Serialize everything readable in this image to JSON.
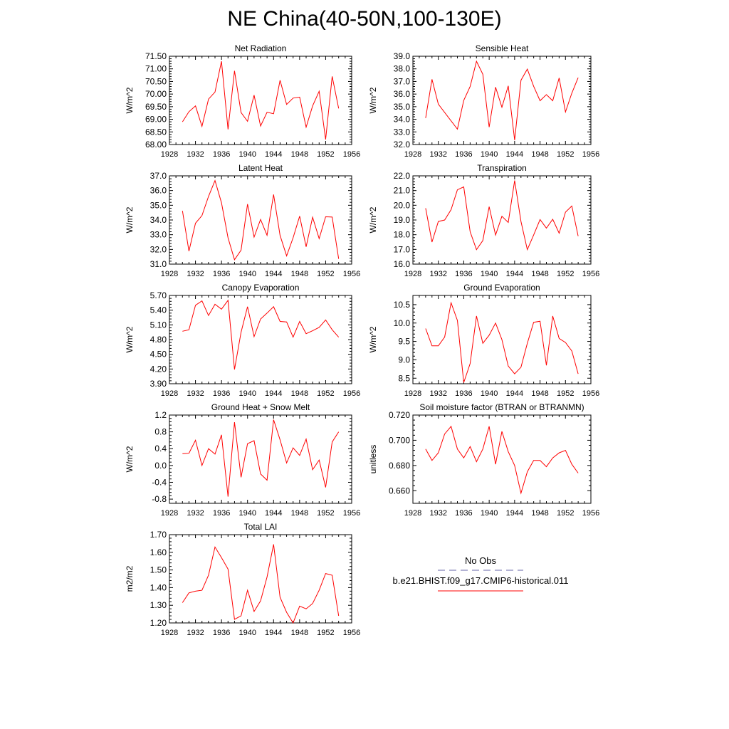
{
  "title": "NE China(40-50N,100-130E)",
  "line_color": "#ff0000",
  "chart_data": [
    {
      "type": "line",
      "title": "Net Radiation",
      "ylabel": "W/m^2",
      "x": [
        1930,
        1931,
        1932,
        1933,
        1934,
        1935,
        1936,
        1937,
        1938,
        1939,
        1940,
        1941,
        1942,
        1943,
        1944,
        1945,
        1946,
        1947,
        1948,
        1949,
        1950,
        1951,
        1952,
        1953,
        1954
      ],
      "values": [
        68.9,
        69.3,
        69.53,
        68.72,
        69.8,
        70.08,
        71.3,
        68.6,
        70.92,
        69.27,
        68.92,
        69.96,
        68.73,
        69.28,
        69.22,
        70.55,
        69.59,
        69.84,
        69.88,
        68.69,
        69.53,
        70.11,
        68.2,
        70.7,
        69.43
      ],
      "ylim": [
        68.0,
        71.5
      ],
      "yticks": [
        "68.00",
        "68.50",
        "69.00",
        "69.50",
        "70.00",
        "70.50",
        "71.00",
        "71.50"
      ],
      "xlim": [
        1928,
        1956
      ],
      "xticks": [
        "1928",
        "1932",
        "1936",
        "1940",
        "1944",
        "1948",
        "1952",
        "1956"
      ]
    },
    {
      "type": "line",
      "title": "Sensible Heat",
      "ylabel": "W/m^2",
      "x": [
        1930,
        1931,
        1932,
        1935,
        1936,
        1937,
        1938,
        1939,
        1940,
        1941,
        1942,
        1943,
        1944,
        1945,
        1946,
        1947,
        1948,
        1949,
        1950,
        1951,
        1952,
        1953,
        1954
      ],
      "values": [
        34.1,
        37.17,
        35.2,
        33.22,
        35.5,
        36.6,
        38.6,
        37.57,
        33.38,
        36.55,
        34.95,
        36.65,
        32.35,
        37.1,
        37.98,
        36.62,
        35.47,
        35.96,
        35.47,
        37.28,
        34.58,
        36.07,
        37.3
      ],
      "ylim": [
        32.0,
        39.0
      ],
      "yticks": [
        "32.0",
        "33.0",
        "34.0",
        "35.0",
        "36.0",
        "37.0",
        "38.0",
        "39.0"
      ],
      "xlim": [
        1928,
        1956
      ],
      "xticks": [
        "1928",
        "1932",
        "1936",
        "1940",
        "1944",
        "1948",
        "1952",
        "1956"
      ]
    },
    {
      "type": "line",
      "title": "Latent Heat",
      "ylabel": "W/m^2",
      "x": [
        1930,
        1931,
        1932,
        1933,
        1934,
        1935,
        1936,
        1937,
        1938,
        1939,
        1940,
        1941,
        1942,
        1943,
        1944,
        1945,
        1946,
        1947,
        1948,
        1949,
        1950,
        1951,
        1952,
        1953,
        1954
      ],
      "values": [
        34.62,
        31.88,
        33.78,
        34.3,
        35.6,
        36.68,
        35.17,
        32.79,
        31.3,
        31.95,
        35.08,
        32.84,
        34.04,
        32.96,
        35.73,
        32.95,
        31.56,
        32.79,
        34.26,
        32.18,
        34.19,
        32.73,
        34.22,
        34.2,
        31.36
      ],
      "ylim": [
        31.0,
        37.0
      ],
      "yticks": [
        "31.0",
        "32.0",
        "33.0",
        "34.0",
        "35.0",
        "36.0",
        "37.0"
      ],
      "xlim": [
        1928,
        1956
      ],
      "xticks": [
        "1928",
        "1932",
        "1936",
        "1940",
        "1944",
        "1948",
        "1952",
        "1956"
      ]
    },
    {
      "type": "line",
      "title": "Transpiration",
      "ylabel": "W/m^2",
      "x": [
        1930,
        1931,
        1932,
        1933,
        1934,
        1935,
        1936,
        1937,
        1938,
        1939,
        1940,
        1941,
        1942,
        1943,
        1944,
        1945,
        1946,
        1947,
        1948,
        1949,
        1950,
        1951,
        1952,
        1953,
        1954
      ],
      "values": [
        19.8,
        17.5,
        18.9,
        19.0,
        19.7,
        21.05,
        21.25,
        18.2,
        16.98,
        17.6,
        19.9,
        17.98,
        19.25,
        18.83,
        21.68,
        18.9,
        16.98,
        17.98,
        19.03,
        18.45,
        19.05,
        18.1,
        19.53,
        19.95,
        17.9
      ],
      "ylim": [
        16.0,
        22.0
      ],
      "yticks": [
        "16.0",
        "17.0",
        "18.0",
        "19.0",
        "20.0",
        "21.0",
        "22.0"
      ],
      "xlim": [
        1928,
        1956
      ],
      "xticks": [
        "1928",
        "1932",
        "1936",
        "1940",
        "1944",
        "1948",
        "1952",
        "1956"
      ]
    },
    {
      "type": "line",
      "title": "Canopy Evaporation",
      "ylabel": "W/m^2",
      "x": [
        1930,
        1931,
        1932,
        1933,
        1934,
        1935,
        1936,
        1937,
        1938,
        1939,
        1940,
        1941,
        1942,
        1943,
        1944,
        1945,
        1946,
        1947,
        1948,
        1949,
        1950,
        1951,
        1952,
        1953,
        1954
      ],
      "values": [
        4.97,
        5.0,
        5.5,
        5.59,
        5.29,
        5.52,
        5.42,
        5.6,
        4.19,
        4.95,
        5.47,
        4.86,
        5.22,
        5.34,
        5.47,
        5.17,
        5.16,
        4.85,
        5.17,
        4.92,
        4.98,
        5.05,
        5.2,
        5.0,
        4.85
      ],
      "ylim": [
        3.9,
        5.7
      ],
      "yticks": [
        "3.90",
        "4.20",
        "4.50",
        "4.80",
        "5.10",
        "5.40",
        "5.70"
      ],
      "xlim": [
        1928,
        1956
      ],
      "xticks": [
        "1928",
        "1932",
        "1936",
        "1940",
        "1944",
        "1948",
        "1952",
        "1956"
      ]
    },
    {
      "type": "line",
      "title": "Ground Evaporation",
      "ylabel": "W/m^2",
      "x": [
        1930,
        1931,
        1932,
        1933,
        1934,
        1935,
        1936,
        1937,
        1938,
        1939,
        1940,
        1941,
        1942,
        1943,
        1944,
        1945,
        1946,
        1947,
        1948,
        1949,
        1950,
        1951,
        1952,
        1953,
        1954
      ],
      "values": [
        9.85,
        9.38,
        9.38,
        9.62,
        10.55,
        10.07,
        8.38,
        8.9,
        10.19,
        9.45,
        9.67,
        10.0,
        9.55,
        8.83,
        8.62,
        8.8,
        9.45,
        10.02,
        10.05,
        8.85,
        10.19,
        9.58,
        9.47,
        9.24,
        8.62
      ],
      "ylim": [
        8.35,
        10.75
      ],
      "yticks": [
        "8.5",
        "9.0",
        "9.5",
        "10.0",
        "10.5"
      ],
      "ytick_values": [
        8.5,
        9.0,
        9.5,
        10.0,
        10.5
      ],
      "xlim": [
        1928,
        1956
      ],
      "xticks": [
        "1928",
        "1932",
        "1936",
        "1940",
        "1944",
        "1948",
        "1952",
        "1956"
      ]
    },
    {
      "type": "line",
      "title": "Ground Heat + Snow Melt",
      "ylabel": "W/m^2",
      "x": [
        1930,
        1931,
        1932,
        1933,
        1934,
        1935,
        1936,
        1937,
        1938,
        1939,
        1940,
        1941,
        1942,
        1943,
        1944,
        1945,
        1946,
        1947,
        1948,
        1949,
        1950,
        1951,
        1952,
        1953,
        1954
      ],
      "values": [
        0.28,
        0.29,
        0.6,
        0.0,
        0.4,
        0.27,
        0.73,
        -0.74,
        1.03,
        -0.28,
        0.52,
        0.59,
        -0.2,
        -0.35,
        1.09,
        0.61,
        0.06,
        0.42,
        0.24,
        0.63,
        -0.1,
        0.13,
        -0.52,
        0.56,
        0.8
      ],
      "ylim": [
        -0.9,
        1.2
      ],
      "yticks": [
        "-0.8",
        "-0.4",
        "0.0",
        "0.4",
        "0.8",
        "1.2"
      ],
      "ytick_values": [
        -0.8,
        -0.4,
        0.0,
        0.4,
        0.8,
        1.2
      ],
      "xlim": [
        1928,
        1956
      ],
      "xticks": [
        "1928",
        "1932",
        "1936",
        "1940",
        "1944",
        "1948",
        "1952",
        "1956"
      ]
    },
    {
      "type": "line",
      "title": "Soil moisture factor (BTRAN or BTRANMN)",
      "ylabel": "unitless",
      "x": [
        1930,
        1931,
        1932,
        1933,
        1934,
        1935,
        1936,
        1937,
        1938,
        1939,
        1940,
        1941,
        1942,
        1943,
        1944,
        1945,
        1946,
        1947,
        1948,
        1949,
        1950,
        1951,
        1952,
        1953,
        1954
      ],
      "values": [
        0.693,
        0.684,
        0.69,
        0.705,
        0.711,
        0.693,
        0.686,
        0.695,
        0.683,
        0.693,
        0.711,
        0.681,
        0.707,
        0.691,
        0.68,
        0.658,
        0.675,
        0.684,
        0.684,
        0.679,
        0.686,
        0.69,
        0.692,
        0.681,
        0.674
      ],
      "ylim": [
        0.65,
        0.72
      ],
      "yticks": [
        "0.660",
        "0.680",
        "0.700",
        "0.720"
      ],
      "ytick_values": [
        0.66,
        0.68,
        0.7,
        0.72
      ],
      "xlim": [
        1928,
        1956
      ],
      "xticks": [
        "1928",
        "1932",
        "1936",
        "1940",
        "1944",
        "1948",
        "1952",
        "1956"
      ]
    },
    {
      "type": "line",
      "title": "Total LAI",
      "ylabel": "m2/m2",
      "x": [
        1930,
        1931,
        1932,
        1933,
        1934,
        1935,
        1936,
        1937,
        1938,
        1939,
        1940,
        1941,
        1942,
        1943,
        1944,
        1945,
        1946,
        1947,
        1948,
        1949,
        1950,
        1951,
        1952,
        1953,
        1954
      ],
      "values": [
        1.315,
        1.37,
        1.38,
        1.385,
        1.47,
        1.63,
        1.57,
        1.505,
        1.22,
        1.24,
        1.385,
        1.265,
        1.325,
        1.46,
        1.645,
        1.345,
        1.26,
        1.2,
        1.295,
        1.28,
        1.31,
        1.385,
        1.48,
        1.47,
        1.24
      ],
      "ylim": [
        1.2,
        1.7
      ],
      "yticks": [
        "1.20",
        "1.30",
        "1.40",
        "1.50",
        "1.60",
        "1.70"
      ],
      "xlim": [
        1928,
        1956
      ],
      "xticks": [
        "1928",
        "1932",
        "1936",
        "1940",
        "1944",
        "1948",
        "1952",
        "1956"
      ]
    }
  ],
  "legend": {
    "obs_label": "No Obs",
    "obs_color": "#6666aa",
    "model_label": "b.e21.BHIST.f09_g17.CMIP6-historical.011",
    "model_color": "#ff0000"
  }
}
